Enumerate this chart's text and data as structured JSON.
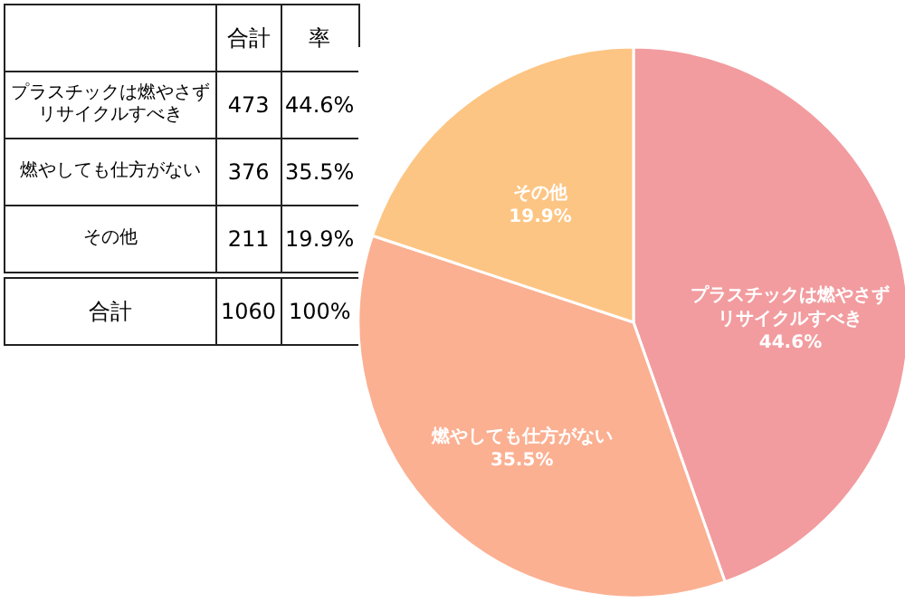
{
  "chart_data": {
    "type": "pie",
    "categories": [
      "プラスチックは燃やさずリサイクルすべき",
      "燃やしても仕方がない",
      "その他"
    ],
    "values": [
      44.6,
      35.5,
      19.9
    ],
    "value_labels": [
      "44.6%",
      "35.5%",
      "19.9%"
    ],
    "colors": [
      "#f29c9f",
      "#fbb092",
      "#fdc583"
    ],
    "annotations": [
      "合計",
      "率",
      "473",
      "376",
      "211",
      "合計",
      "1060",
      "100%"
    ]
  }
}
